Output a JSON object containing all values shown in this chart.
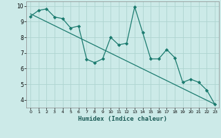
{
  "xlabel": "Humidex (Indice chaleur)",
  "ylabel": "",
  "background_color": "#cceae8",
  "grid_color": "#aed4d0",
  "line_color": "#1a7a6e",
  "trend_color": "#1a7a6e",
  "zigzag_x": [
    0,
    1,
    2,
    3,
    4,
    5,
    6,
    7,
    8,
    9,
    10,
    11,
    12,
    13,
    14,
    15,
    16,
    17,
    18,
    19,
    20,
    21,
    22,
    23
  ],
  "zigzag_y": [
    9.35,
    9.72,
    9.82,
    9.3,
    9.2,
    8.6,
    8.72,
    6.6,
    6.38,
    6.62,
    8.0,
    7.52,
    7.62,
    9.95,
    8.3,
    6.62,
    6.62,
    7.22,
    6.7,
    5.12,
    5.32,
    5.12,
    4.62,
    3.72
  ],
  "trend_x": [
    0,
    23
  ],
  "trend_y": [
    9.5,
    3.72
  ],
  "xlim": [
    -0.5,
    23.5
  ],
  "ylim": [
    3.5,
    10.3
  ],
  "xticks": [
    0,
    1,
    2,
    3,
    4,
    5,
    6,
    7,
    8,
    9,
    10,
    11,
    12,
    13,
    14,
    15,
    16,
    17,
    18,
    19,
    20,
    21,
    22,
    23
  ],
  "yticks": [
    4,
    5,
    6,
    7,
    8,
    9,
    10
  ],
  "marker": "D",
  "markersize": 2.2,
  "linewidth": 0.9
}
